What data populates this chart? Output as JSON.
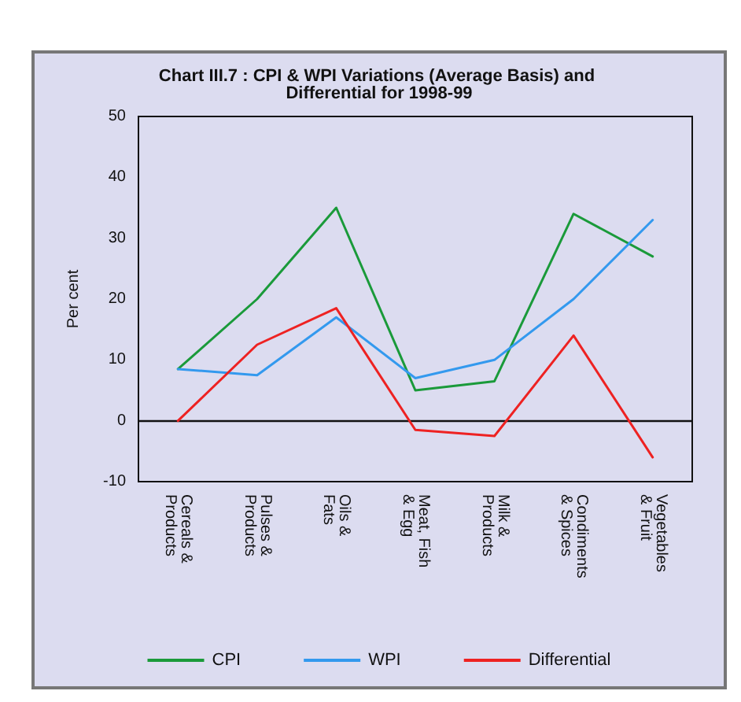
{
  "chart_data": {
    "type": "line",
    "title": "Chart III.7 : CPI & WPI Variations (Average Basis) and Differential for 1998-99",
    "ylabel": "Per cent",
    "categories": [
      "Cereals & Products",
      "Pulses & Products",
      "Oils & Fats",
      "Meat, Fish & Egg",
      "Milk & Products",
      "Condiments & Spices",
      "Vegetables & Fruit"
    ],
    "series": [
      {
        "name": "CPI",
        "color": "#1a9a3a",
        "values": [
          8.5,
          20,
          35,
          5,
          6.5,
          34,
          27
        ]
      },
      {
        "name": "WPI",
        "color": "#3399ee",
        "values": [
          8.5,
          7.5,
          17,
          7,
          10,
          20,
          33
        ]
      },
      {
        "name": "Differential",
        "color": "#ee2222",
        "values": [
          0,
          12.5,
          18.5,
          -1.5,
          -2.5,
          14,
          -6
        ]
      }
    ],
    "ylim": [
      -10,
      50
    ],
    "yticks": [
      -10,
      0,
      10,
      20,
      30,
      40,
      50
    ],
    "grid": false,
    "ref_lines": [
      {
        "axis": "y",
        "value": 0,
        "color": "#111111"
      }
    ],
    "legend": "bottom",
    "marker": "none",
    "line_style": "solid"
  }
}
